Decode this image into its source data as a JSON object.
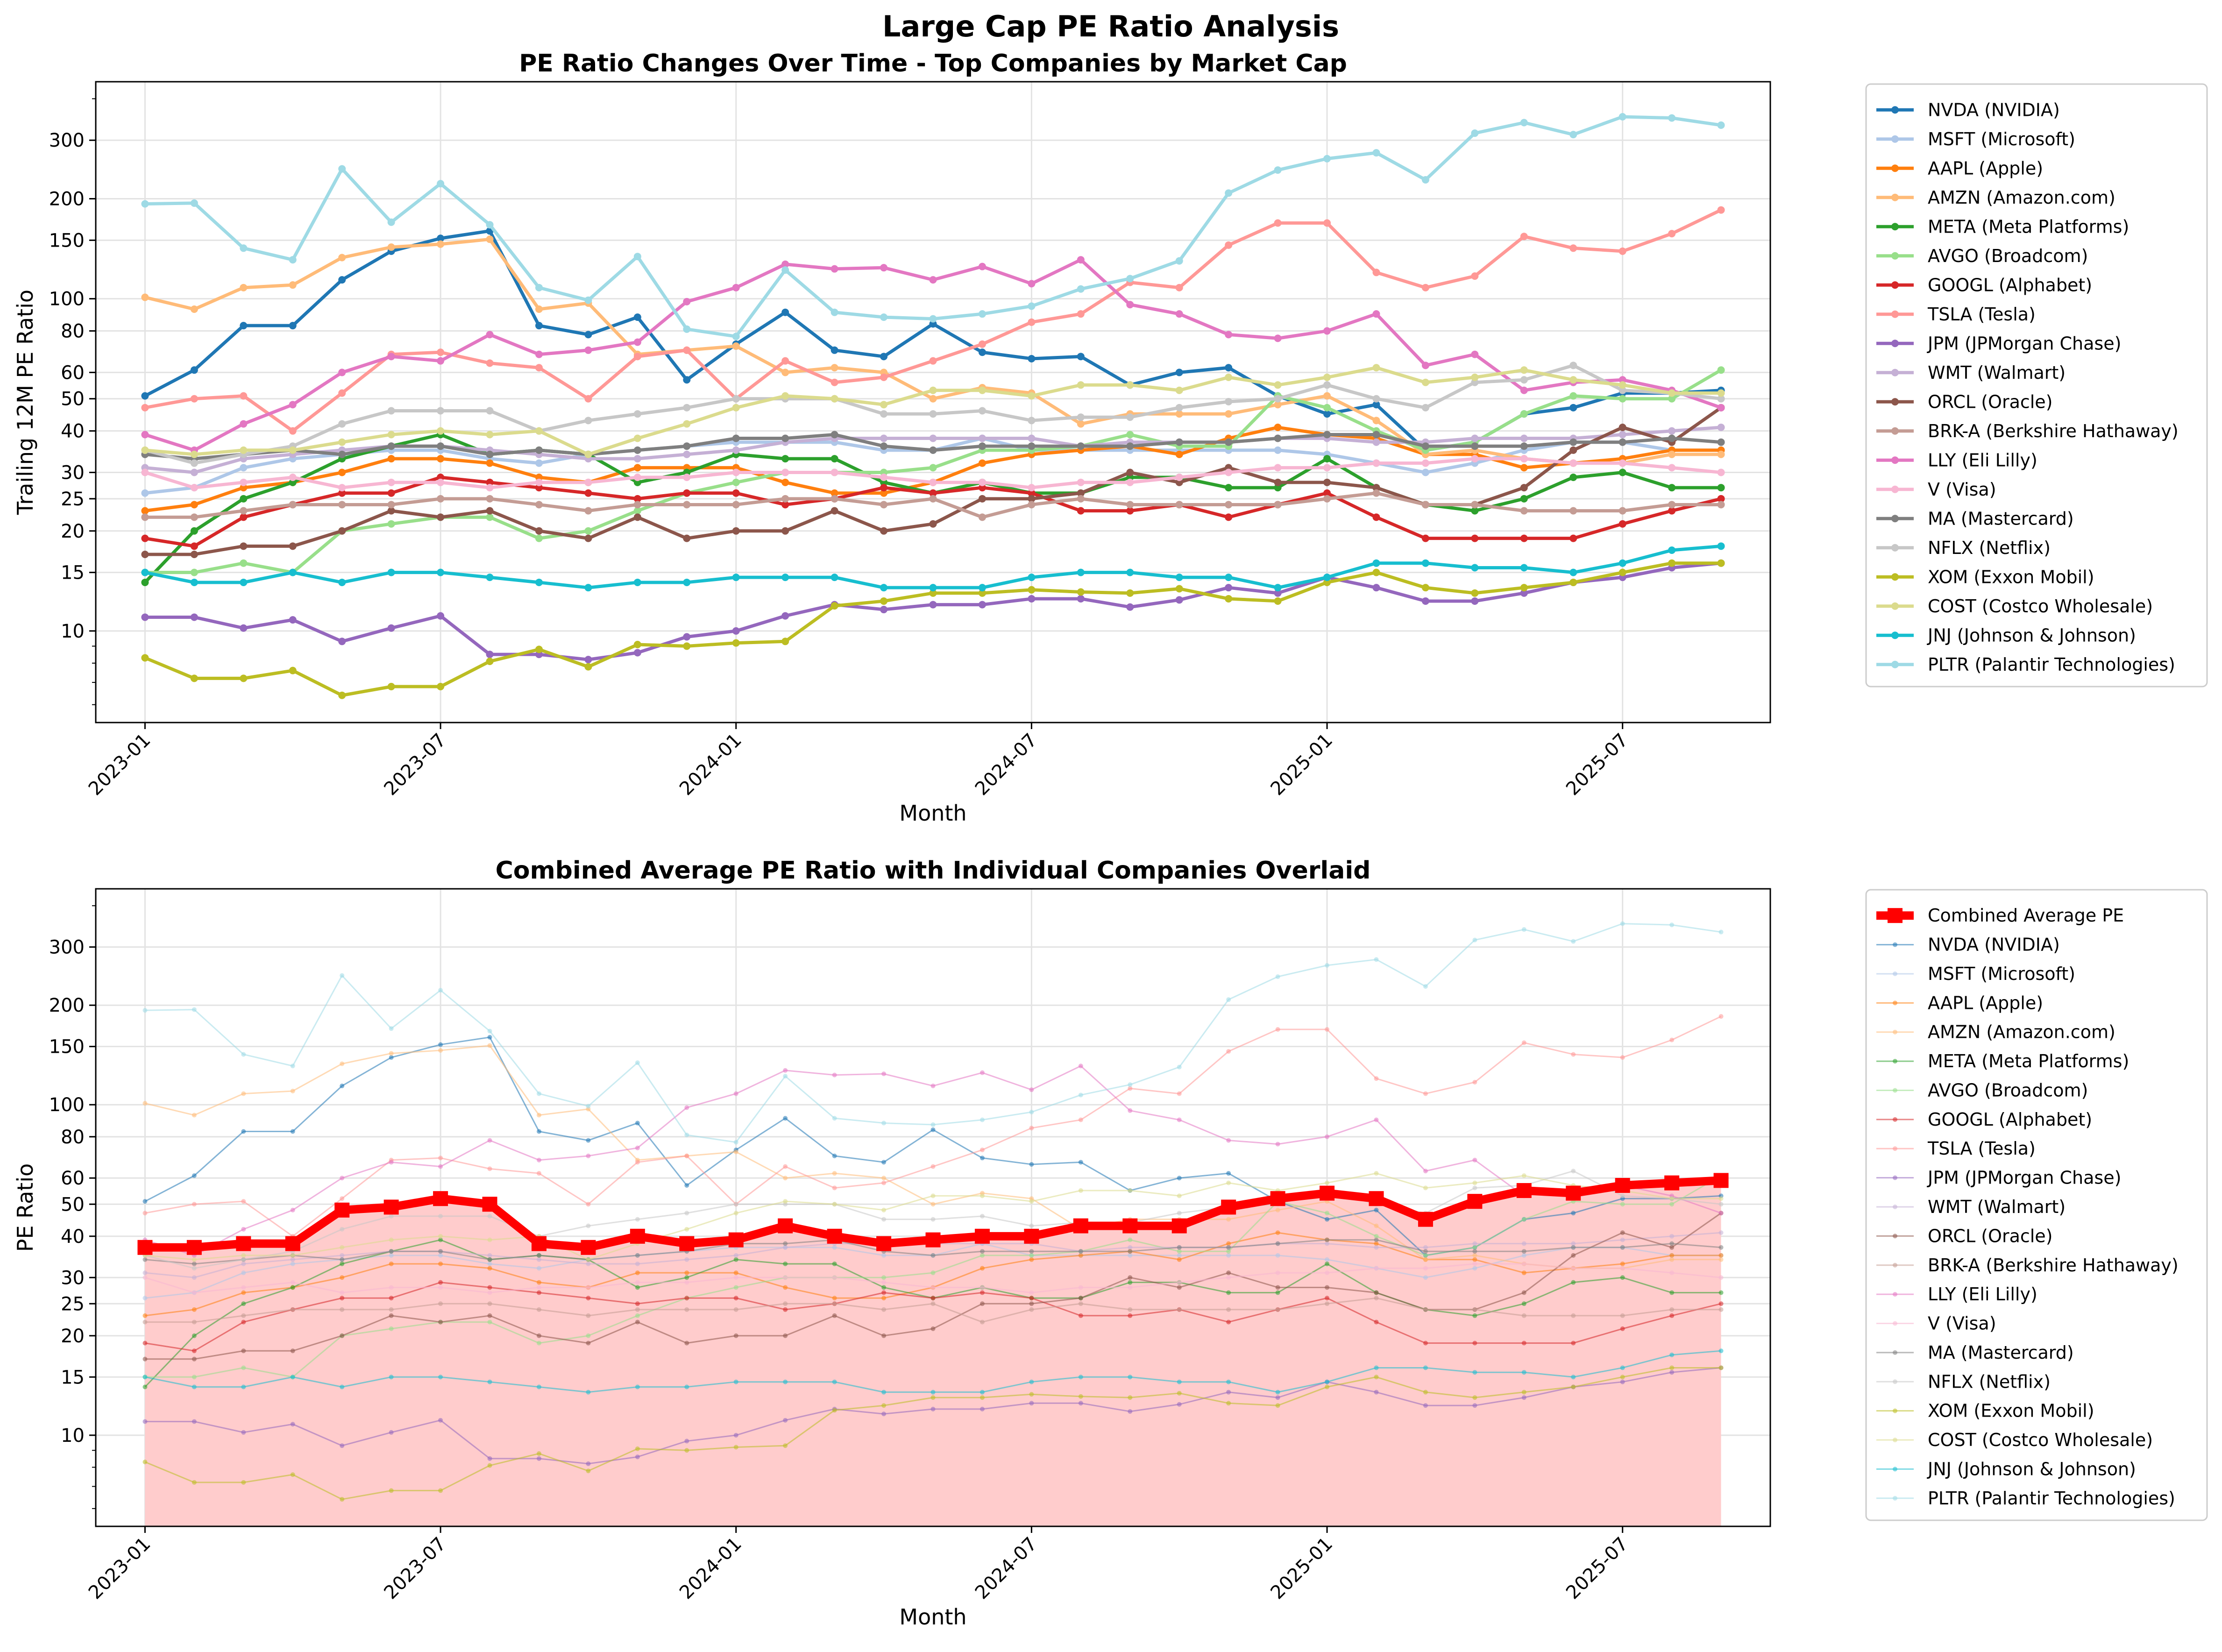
{
  "figure": {
    "suptitle": "Large Cap PE Ratio Analysis"
  },
  "chart_data": [
    {
      "type": "line",
      "title": "PE Ratio Changes Over Time - Top Companies by Market Cap",
      "xlabel": "Month",
      "ylabel": "Trailing 12M PE Ratio",
      "y_scale": "log",
      "ylim": [
        5.3,
        450
      ],
      "xlim": [
        "2022-12",
        "2025-10"
      ],
      "y_ticks": [
        10,
        15,
        20,
        25,
        30,
        40,
        50,
        60,
        80,
        100,
        150,
        200,
        300
      ],
      "x_ticks": [
        "2023-01",
        "2023-07",
        "2024-01",
        "2024-07",
        "2025-01",
        "2025-07"
      ],
      "grid": true,
      "legend_position": "outside right",
      "x": [
        "2023-01",
        "2023-02",
        "2023-03",
        "2023-04",
        "2023-05",
        "2023-06",
        "2023-07",
        "2023-08",
        "2023-09",
        "2023-10",
        "2023-11",
        "2023-12",
        "2024-01",
        "2024-02",
        "2024-03",
        "2024-04",
        "2024-05",
        "2024-06",
        "2024-07",
        "2024-08",
        "2024-09",
        "2024-10",
        "2024-11",
        "2024-12",
        "2025-01",
        "2025-02",
        "2025-03",
        "2025-04",
        "2025-05",
        "2025-06",
        "2025-07",
        "2025-08",
        "2025-09"
      ],
      "series": [
        {
          "name": "NVDA (NVIDIA)",
          "color": "#1f77b4",
          "values": [
            51,
            61,
            83,
            83,
            114,
            139,
            152,
            160,
            83,
            78,
            88,
            57,
            73,
            91,
            70,
            67,
            84,
            69,
            66,
            67,
            55,
            60,
            62,
            51,
            45,
            48,
            35,
            37,
            45,
            47,
            52,
            52,
            53
          ]
        },
        {
          "name": "MSFT (Microsoft)",
          "color": "#aec7e8",
          "values": [
            26,
            27,
            31,
            33,
            34,
            35,
            35,
            33,
            32,
            34,
            35,
            36,
            37,
            37,
            37,
            35,
            35,
            38,
            35,
            35,
            35,
            35,
            35,
            35,
            34,
            32,
            30,
            32,
            35,
            37,
            37,
            35,
            35
          ]
        },
        {
          "name": "AAPL (Apple)",
          "color": "#ff7f0e",
          "values": [
            23,
            24,
            27,
            28,
            30,
            33,
            33,
            32,
            29,
            28,
            31,
            31,
            31,
            28,
            26,
            26,
            28,
            32,
            34,
            35,
            36,
            34,
            38,
            41,
            39,
            38,
            34,
            34,
            31,
            32,
            33,
            35,
            35
          ]
        },
        {
          "name": "AMZN (Amazon.com)",
          "color": "#ffbb78",
          "values": [
            101,
            93,
            108,
            110,
            133,
            143,
            146,
            151,
            93,
            97,
            68,
            70,
            72,
            60,
            62,
            60,
            50,
            54,
            52,
            42,
            45,
            45,
            45,
            48,
            51,
            43,
            34,
            35,
            33,
            32,
            32,
            34,
            34
          ]
        },
        {
          "name": "META (Meta Platforms)",
          "color": "#2ca02c",
          "values": [
            14,
            20,
            25,
            28,
            33,
            36,
            39,
            34,
            35,
            34,
            28,
            30,
            34,
            33,
            33,
            28,
            26,
            28,
            26,
            26,
            29,
            29,
            27,
            27,
            33,
            27,
            24,
            23,
            25,
            29,
            30,
            27,
            27
          ]
        },
        {
          "name": "AVGO (Broadcom)",
          "color": "#98df8a",
          "values": [
            15,
            15,
            16,
            15,
            20,
            21,
            22,
            22,
            19,
            20,
            23,
            26,
            28,
            30,
            30,
            30,
            31,
            35,
            35,
            36,
            39,
            36,
            36,
            51,
            47,
            40,
            35,
            37,
            45,
            51,
            50,
            50,
            61
          ]
        },
        {
          "name": "GOOGL (Alphabet)",
          "color": "#d62728",
          "values": [
            19,
            18,
            22,
            24,
            26,
            26,
            29,
            28,
            27,
            26,
            25,
            26,
            26,
            24,
            25,
            27,
            26,
            27,
            26,
            23,
            23,
            24,
            22,
            24,
            26,
            22,
            19,
            19,
            19,
            19,
            21,
            23,
            25
          ]
        },
        {
          "name": "TSLA (Tesla)",
          "color": "#ff9896",
          "values": [
            47,
            50,
            51,
            40,
            52,
            68,
            69,
            64,
            62,
            50,
            67,
            70,
            50,
            65,
            56,
            58,
            65,
            73,
            85,
            90,
            112,
            108,
            145,
            169,
            169,
            120,
            108,
            117,
            154,
            142,
            139,
            157,
            185
          ]
        },
        {
          "name": "JPM (JPMorgan Chase)",
          "color": "#9467bd",
          "values": [
            11,
            11,
            10.2,
            10.8,
            9.3,
            10.2,
            11.1,
            8.5,
            8.5,
            8.2,
            8.6,
            9.6,
            10,
            11.1,
            12,
            11.6,
            12,
            12,
            12.5,
            12.5,
            11.8,
            12.4,
            13.5,
            13,
            14.5,
            13.5,
            12.3,
            12.3,
            13,
            14,
            14.5,
            15.5,
            16
          ]
        },
        {
          "name": "WMT (Walmart)",
          "color": "#c5b0d5",
          "values": [
            31,
            30,
            33,
            34,
            35,
            36,
            36,
            35,
            34,
            33,
            33,
            34,
            35,
            37,
            38,
            38,
            38,
            38,
            38,
            36,
            37,
            37,
            37,
            38,
            38,
            37,
            37,
            38,
            38,
            38,
            39,
            40,
            41
          ]
        },
        {
          "name": "ORCL (Oracle)",
          "color": "#8c564b",
          "values": [
            17,
            17,
            18,
            18,
            20,
            23,
            22,
            23,
            20,
            19,
            22,
            19,
            20,
            20,
            23,
            20,
            21,
            25,
            25,
            26,
            30,
            28,
            31,
            28,
            28,
            27,
            24,
            24,
            27,
            35,
            41,
            37,
            47
          ]
        },
        {
          "name": "BRK-A (Berkshire Hathaway)",
          "color": "#c49c94",
          "values": [
            22,
            22,
            23,
            24,
            24,
            24,
            25,
            25,
            24,
            23,
            24,
            24,
            24,
            25,
            25,
            24,
            25,
            22,
            24,
            25,
            24,
            24,
            24,
            24,
            25,
            26,
            24,
            24,
            23,
            23,
            23,
            24,
            24
          ]
        },
        {
          "name": "LLY (Eli Lilly)",
          "color": "#e377c2",
          "values": [
            39,
            35,
            42,
            48,
            60,
            67,
            65,
            78,
            68,
            70,
            74,
            98,
            108,
            127,
            123,
            124,
            114,
            125,
            111,
            131,
            96,
            90,
            78,
            76,
            80,
            90,
            63,
            68,
            53,
            56,
            57,
            53,
            47
          ]
        },
        {
          "name": "V (Visa)",
          "color": "#f7b6d2",
          "values": [
            30,
            27,
            28,
            29,
            27,
            28,
            28,
            27,
            28,
            28,
            29,
            29,
            30,
            30,
            30,
            29,
            28,
            28,
            27,
            28,
            28,
            29,
            30,
            31,
            31,
            32,
            32,
            33,
            33,
            32,
            32,
            31,
            30
          ]
        },
        {
          "name": "MA (Mastercard)",
          "color": "#7f7f7f",
          "values": [
            34,
            33,
            34,
            35,
            34,
            36,
            36,
            34,
            35,
            34,
            35,
            36,
            38,
            38,
            39,
            36,
            35,
            36,
            36,
            36,
            36,
            37,
            37,
            38,
            39,
            39,
            36,
            36,
            36,
            37,
            37,
            38,
            37
          ]
        },
        {
          "name": "NFLX (Netflix)",
          "color": "#c7c7c7",
          "values": [
            35,
            32,
            34,
            36,
            42,
            46,
            46,
            46,
            40,
            43,
            45,
            47,
            50,
            50,
            50,
            45,
            45,
            46,
            43,
            44,
            44,
            47,
            49,
            50,
            55,
            50,
            47,
            56,
            57,
            63,
            53,
            52,
            50
          ]
        },
        {
          "name": "XOM (Exxon Mobil)",
          "color": "#bcbd22",
          "values": [
            8.3,
            7.2,
            7.2,
            7.6,
            6.4,
            6.8,
            6.8,
            8.1,
            8.8,
            7.8,
            9.1,
            9,
            9.2,
            9.3,
            11.9,
            12.3,
            13,
            13,
            13.3,
            13.1,
            13,
            13.4,
            12.5,
            12.3,
            14,
            15,
            13.5,
            13,
            13.5,
            14,
            15,
            16,
            16
          ]
        },
        {
          "name": "COST (Costco Wholesale)",
          "color": "#dbdb8d",
          "values": [
            35,
            34,
            35,
            35,
            37,
            39,
            40,
            39,
            40,
            34,
            38,
            42,
            47,
            51,
            50,
            48,
            53,
            53,
            51,
            55,
            55,
            53,
            58,
            55,
            58,
            62,
            56,
            58,
            61,
            57,
            55,
            52,
            52
          ]
        },
        {
          "name": "JNJ (Johnson & Johnson)",
          "color": "#17becf",
          "values": [
            15,
            14,
            14,
            15,
            14,
            15,
            15,
            14.5,
            14,
            13.5,
            14,
            14,
            14.5,
            14.5,
            14.5,
            13.5,
            13.5,
            13.5,
            14.5,
            15,
            15,
            14.5,
            14.5,
            13.5,
            14.5,
            16,
            16,
            15.5,
            15.5,
            15,
            16,
            17.5,
            18
          ]
        },
        {
          "name": "PLTR (Palantir Technologies)",
          "color": "#9edae5",
          "values": [
            193,
            194,
            142,
            131,
            246,
            170,
            222,
            167,
            108,
            99,
            134,
            81,
            77,
            122,
            91,
            88,
            87,
            90,
            95,
            107,
            115,
            130,
            208,
            244,
            264,
            275,
            228,
            315,
            339,
            312,
            353,
            350,
            333
          ]
        }
      ]
    },
    {
      "type": "line",
      "title": "Combined Average PE Ratio with Individual Companies Overlaid",
      "xlabel": "Month",
      "ylabel": "PE Ratio",
      "y_scale": "log",
      "ylim": [
        5.3,
        450
      ],
      "xlim": [
        "2022-12",
        "2025-10"
      ],
      "y_ticks": [
        10,
        15,
        20,
        25,
        30,
        40,
        50,
        60,
        80,
        100,
        150,
        200,
        300
      ],
      "x_ticks": [
        "2023-01",
        "2023-07",
        "2024-01",
        "2024-07",
        "2025-01",
        "2025-07"
      ],
      "grid": true,
      "legend_position": "outside right",
      "highlight_series": {
        "name": "Combined Average PE",
        "color": "#ff0000",
        "fill": "#ffcccc",
        "values": [
          37,
          37,
          38,
          38,
          48,
          49,
          52,
          50,
          38,
          37,
          40,
          38,
          39,
          43,
          40,
          38,
          39,
          40,
          40,
          43,
          43,
          43,
          49,
          52,
          54,
          52,
          45,
          51,
          55,
          54,
          57,
          58,
          59
        ]
      },
      "overlaid_series_ref": "same series as chart 1 (drawn faint)"
    }
  ],
  "legend_entries": [
    "NVDA (NVIDIA)",
    "MSFT (Microsoft)",
    "AAPL (Apple)",
    "AMZN (Amazon.com)",
    "META (Meta Platforms)",
    "AVGO (Broadcom)",
    "GOOGL (Alphabet)",
    "TSLA (Tesla)",
    "JPM (JPMorgan Chase)",
    "WMT (Walmart)",
    "ORCL (Oracle)",
    "BRK-A (Berkshire Hathaway)",
    "LLY (Eli Lilly)",
    "V (Visa)",
    "MA (Mastercard)",
    "NFLX (Netflix)",
    "XOM (Exxon Mobil)",
    "COST (Costco Wholesale)",
    "JNJ (Johnson & Johnson)",
    "PLTR (Palantir Technologies)"
  ]
}
